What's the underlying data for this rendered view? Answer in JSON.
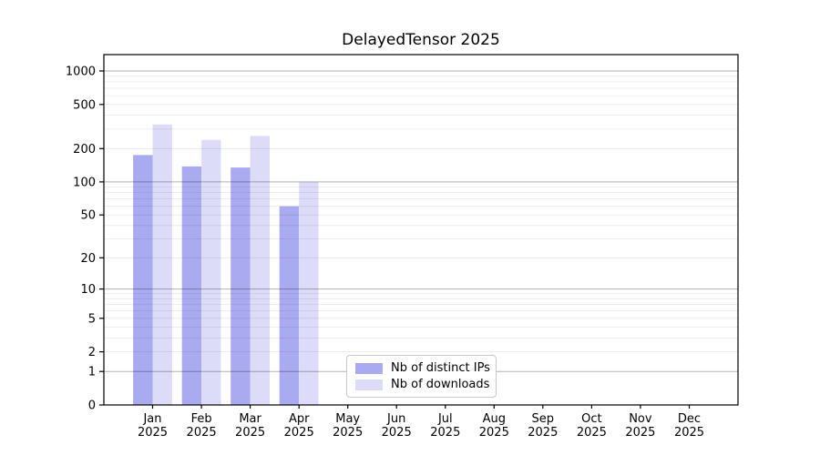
{
  "chart_data": {
    "type": "bar",
    "title": "DelayedTensor 2025",
    "x_categories": [
      "Jan",
      "Feb",
      "Mar",
      "Apr",
      "May",
      "Jun",
      "Jul",
      "Aug",
      "Sep",
      "Oct",
      "Nov",
      "Dec"
    ],
    "x_year": "2025",
    "y_scale": "log10(1+y)",
    "y_ticks": [
      0,
      1,
      2,
      5,
      10,
      20,
      50,
      100,
      200,
      500,
      1000
    ],
    "y_top_value": 1450,
    "grid": {
      "major_values": [
        1,
        10,
        100,
        1000
      ],
      "minor_values": [
        2,
        3,
        4,
        5,
        6,
        7,
        8,
        9,
        20,
        30,
        40,
        50,
        60,
        70,
        80,
        90,
        200,
        300,
        400,
        500,
        600,
        700,
        800,
        900
      ]
    },
    "series": [
      {
        "name": "Nb of distinct IPs",
        "color": "#aaaaf0",
        "values": [
          175,
          138,
          135,
          60,
          0,
          0,
          0,
          0,
          0,
          0,
          0,
          0
        ]
      },
      {
        "name": "Nb of downloads",
        "color": "#dcdcf8",
        "values": [
          330,
          240,
          260,
          100,
          0,
          0,
          0,
          0,
          0,
          0,
          0,
          0
        ]
      }
    ],
    "legend_position": "lower center",
    "colors": {
      "background": "#ffffff",
      "spine": "#000000",
      "major_grid": "rgba(0,0,0,0.30)",
      "minor_grid": "rgba(0,0,0,0.09)",
      "text": "#000000",
      "legend_border": "#c9c9c9"
    }
  }
}
